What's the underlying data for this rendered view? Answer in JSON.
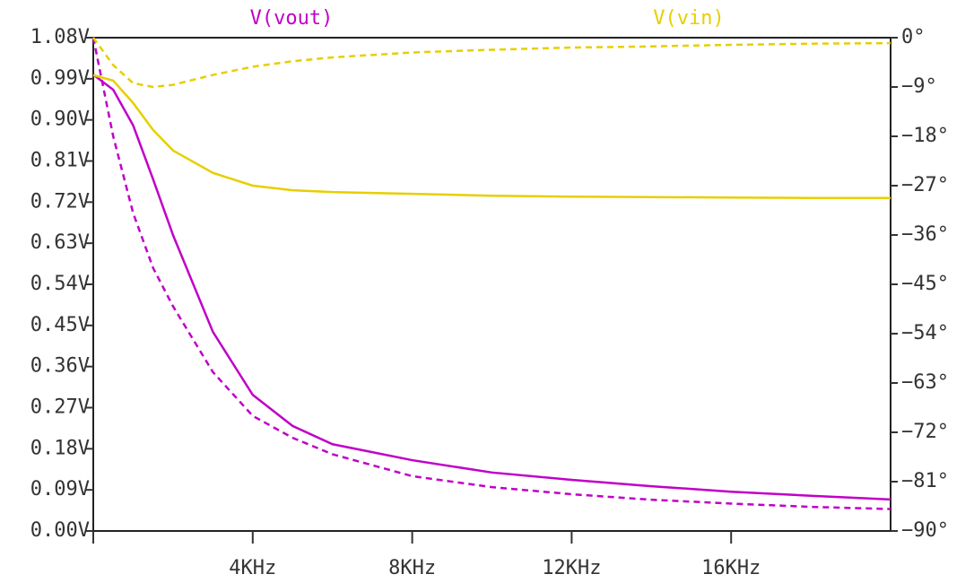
{
  "chart_data": {
    "type": "line",
    "x": [
      0,
      500,
      1000,
      1500,
      2000,
      3000,
      4000,
      5000,
      6000,
      8000,
      10000,
      12000,
      14000,
      16000,
      18000,
      20000
    ],
    "series": [
      {
        "name": "V(vout)",
        "color": "#c000c8",
        "values": [
          0.999,
          0.966,
          0.888,
          0.77,
          0.648,
          0.436,
          0.298,
          0.23,
          0.19,
          0.155,
          0.128,
          0.112,
          0.098,
          0.086,
          0.077,
          0.069
        ],
        "phase": [
          0,
          -18,
          -32,
          -42,
          -49,
          -61,
          -69,
          -73,
          -76,
          -80,
          -82,
          -83.3,
          -84.3,
          -85,
          -85.6,
          -86
        ]
      },
      {
        "name": "V(vin)",
        "color": "#e6cf00",
        "values": [
          0.998,
          0.986,
          0.937,
          0.878,
          0.833,
          0.784,
          0.756,
          0.746,
          0.742,
          0.738,
          0.734,
          0.732,
          0.731,
          0.73,
          0.729,
          0.729
        ],
        "phase": [
          0,
          -5,
          -8.3,
          -9,
          -8.6,
          -6.8,
          -5.3,
          -4.3,
          -3.6,
          -2.7,
          -2.2,
          -1.8,
          -1.6,
          -1.3,
          -1.1,
          -1.0
        ]
      }
    ],
    "phase_axis": "y2",
    "phase_style": "dashed",
    "xlim": [
      0,
      20000
    ],
    "xticks": [
      {
        "value": 4000,
        "label": "4KHz"
      },
      {
        "value": 8000,
        "label": "8KHz"
      },
      {
        "value": 12000,
        "label": "12KHz"
      },
      {
        "value": 16000,
        "label": "16KHz"
      }
    ],
    "ylim": [
      0,
      1.08
    ],
    "yticks": [
      {
        "value": 0,
        "label": "0.00V"
      },
      {
        "value": 0.09,
        "label": "0.09V"
      },
      {
        "value": 0.18,
        "label": "0.18V"
      },
      {
        "value": 0.27,
        "label": "0.27V"
      },
      {
        "value": 0.36,
        "label": "0.36V"
      },
      {
        "value": 0.45,
        "label": "0.45V"
      },
      {
        "value": 0.54,
        "label": "0.54V"
      },
      {
        "value": 0.63,
        "label": "0.63V"
      },
      {
        "value": 0.72,
        "label": "0.72V"
      },
      {
        "value": 0.81,
        "label": "0.81V"
      },
      {
        "value": 0.9,
        "label": "0.90V"
      },
      {
        "value": 0.99,
        "label": "0.99V"
      },
      {
        "value": 1.08,
        "label": "1.08V"
      }
    ],
    "y2lim": [
      -90,
      0
    ],
    "y2ticks": [
      {
        "value": 0,
        "label": "0°"
      },
      {
        "value": -9,
        "label": "−9°"
      },
      {
        "value": -18,
        "label": "−18°"
      },
      {
        "value": -27,
        "label": "−27°"
      },
      {
        "value": -36,
        "label": "−36°"
      },
      {
        "value": -45,
        "label": "−45°"
      },
      {
        "value": -54,
        "label": "−54°"
      },
      {
        "value": -63,
        "label": "−63°"
      },
      {
        "value": -72,
        "label": "−72°"
      },
      {
        "value": -81,
        "label": "−81°"
      },
      {
        "value": -90,
        "label": "−90°"
      }
    ]
  }
}
